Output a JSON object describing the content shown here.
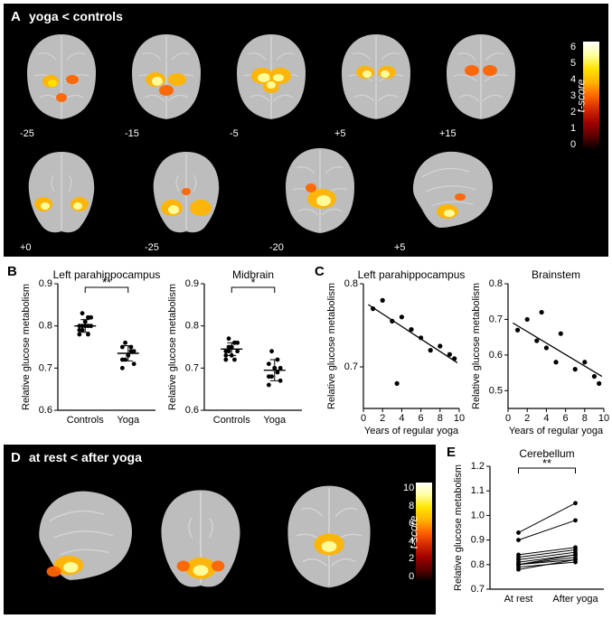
{
  "panelA": {
    "label": "A",
    "title": "yoga < controls",
    "bg": "#000000",
    "slice_labels_row1": [
      "-25",
      "-15",
      "-5",
      "+5",
      "+15"
    ],
    "slice_labels_row2": [
      "+0",
      "-25",
      "-20",
      "+5"
    ],
    "brain_gray": "#bdbdbd",
    "brain_gray_light": "#d4d4d4",
    "activation_colors": [
      "#5a0000",
      "#a00000",
      "#d42800",
      "#ff6400",
      "#ffb400",
      "#ffe400",
      "#ffffa0"
    ],
    "colorbar": {
      "gradient_stops": [
        "#000000",
        "#5a0000",
        "#a00000",
        "#d42800",
        "#ff6400",
        "#ffb400",
        "#ffe400",
        "#ffffa0",
        "#ffffff"
      ],
      "min": 0,
      "max": 6,
      "ticks": [
        6,
        5,
        4,
        3,
        2,
        1,
        0
      ],
      "label": "t-score"
    }
  },
  "panelB": {
    "label": "B",
    "charts": [
      {
        "title": "Left parahippocampus",
        "ylabel": "Relative glucose metabolism",
        "ylim": [
          0.6,
          0.9
        ],
        "yticks": [
          0.6,
          0.7,
          0.8,
          0.9
        ],
        "categories": [
          "Controls",
          "Yoga"
        ],
        "sig": "**",
        "data": {
          "Controls": [
            0.78,
            0.8,
            0.81,
            0.82,
            0.8,
            0.79,
            0.83,
            0.8,
            0.78,
            0.82,
            0.8,
            0.79,
            0.81,
            0.8
          ],
          "Yoga": [
            0.7,
            0.72,
            0.73,
            0.75,
            0.74,
            0.72,
            0.76,
            0.73,
            0.74,
            0.71,
            0.75
          ]
        },
        "mean_sd": {
          "Controls": [
            0.8,
            0.015
          ],
          "Yoga": [
            0.735,
            0.018
          ]
        },
        "pt_color": "#000000"
      },
      {
        "title": "Midbrain",
        "ylabel": "Relative glucose metabolism",
        "ylim": [
          0.6,
          0.9
        ],
        "yticks": [
          0.6,
          0.7,
          0.8,
          0.9
        ],
        "categories": [
          "Controls",
          "Yoga"
        ],
        "sig": "*",
        "data": {
          "Controls": [
            0.72,
            0.74,
            0.75,
            0.76,
            0.74,
            0.73,
            0.77,
            0.75,
            0.72,
            0.76,
            0.74,
            0.75,
            0.73,
            0.76
          ],
          "Yoga": [
            0.66,
            0.68,
            0.7,
            0.72,
            0.7,
            0.68,
            0.74,
            0.7,
            0.69,
            0.67,
            0.71
          ]
        },
        "mean_sd": {
          "Controls": [
            0.745,
            0.015
          ],
          "Yoga": [
            0.695,
            0.025
          ]
        },
        "pt_color": "#000000"
      }
    ]
  },
  "panelC": {
    "label": "C",
    "charts": [
      {
        "title": "Left parahippocampus",
        "xlabel": "Years of regular yoga",
        "ylabel": "Relative glucose metabolism",
        "xlim": [
          0,
          10
        ],
        "xticks": [
          0,
          2,
          4,
          6,
          8,
          10
        ],
        "ylim": [
          0.65,
          0.8
        ],
        "yticks": [
          0.7,
          0.8
        ],
        "points": [
          [
            1,
            0.77
          ],
          [
            2,
            0.78
          ],
          [
            3,
            0.755
          ],
          [
            3.5,
            0.68
          ],
          [
            4,
            0.76
          ],
          [
            5,
            0.745
          ],
          [
            6,
            0.735
          ],
          [
            7,
            0.72
          ],
          [
            8,
            0.725
          ],
          [
            9,
            0.715
          ],
          [
            9.5,
            0.71
          ]
        ],
        "reg": [
          [
            0.5,
            0.775
          ],
          [
            9.8,
            0.705
          ]
        ],
        "pt_color": "#000000"
      },
      {
        "title": "Brainstem",
        "xlabel": "Years of regular yoga",
        "ylabel": "Relative glucose metabolism",
        "xlim": [
          0,
          10
        ],
        "xticks": [
          0,
          2,
          4,
          6,
          8,
          10
        ],
        "ylim": [
          0.45,
          0.8
        ],
        "yticks": [
          0.5,
          0.6,
          0.7,
          0.8
        ],
        "points": [
          [
            1,
            0.67
          ],
          [
            2,
            0.7
          ],
          [
            3,
            0.64
          ],
          [
            3.5,
            0.72
          ],
          [
            4,
            0.62
          ],
          [
            5,
            0.58
          ],
          [
            5.5,
            0.66
          ],
          [
            7,
            0.56
          ],
          [
            8,
            0.58
          ],
          [
            9,
            0.54
          ],
          [
            9.5,
            0.52
          ]
        ],
        "reg": [
          [
            0.5,
            0.69
          ],
          [
            9.8,
            0.54
          ]
        ],
        "pt_color": "#000000"
      }
    ]
  },
  "panelD": {
    "label": "D",
    "title": "at rest < after yoga",
    "bg": "#000000",
    "slices": 3,
    "brain_gray": "#bdbdbd",
    "brain_gray_light": "#d4d4d4",
    "colorbar": {
      "gradient_stops": [
        "#000000",
        "#5a0000",
        "#a00000",
        "#d42800",
        "#ff6400",
        "#ffb400",
        "#ffe400",
        "#ffffa0",
        "#ffffff"
      ],
      "min": 0,
      "max": 10,
      "ticks": [
        10,
        8,
        6,
        4,
        2,
        0
      ],
      "label": "t-score"
    }
  },
  "panelE": {
    "label": "E",
    "title": "Cerebellum",
    "ylabel": "Relative glucose metabolism",
    "ylim": [
      0.7,
      1.2
    ],
    "yticks": [
      0.7,
      0.8,
      0.9,
      1.0,
      1.1,
      1.2
    ],
    "categories": [
      "At rest",
      "After yoga"
    ],
    "sig": "**",
    "pairs": [
      [
        0.8,
        0.83
      ],
      [
        0.78,
        0.82
      ],
      [
        0.82,
        0.85
      ],
      [
        0.81,
        0.84
      ],
      [
        0.8,
        0.82
      ],
      [
        0.84,
        0.87
      ],
      [
        0.83,
        0.86
      ],
      [
        0.8,
        0.84
      ],
      [
        0.9,
        0.98
      ],
      [
        0.93,
        1.05
      ],
      [
        0.79,
        0.81
      ]
    ],
    "pt_color": "#000000"
  }
}
